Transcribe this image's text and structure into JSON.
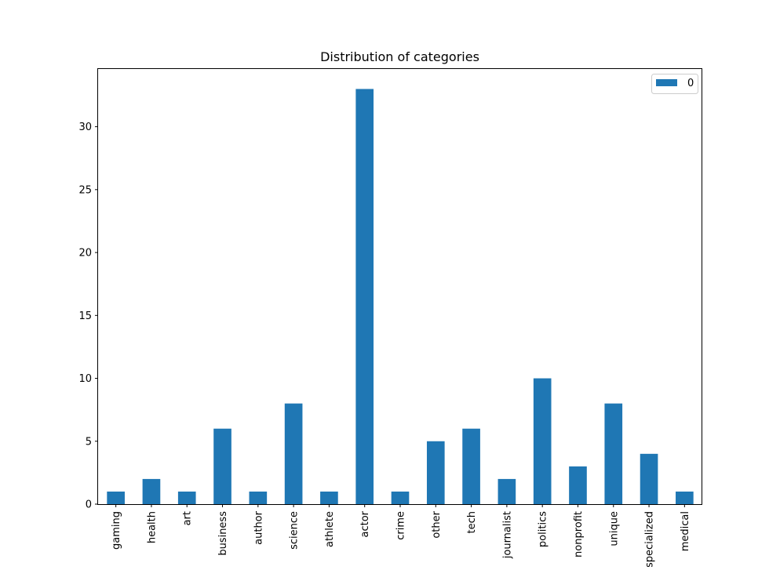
{
  "chart_data": {
    "type": "bar",
    "title": "Distribution of categories",
    "xlabel": "",
    "ylabel": "",
    "categories": [
      "gaming",
      "health",
      "art",
      "business",
      "author",
      "science",
      "athlete",
      "actor",
      "crime",
      "other",
      "tech",
      "journalist",
      "politics",
      "nonprofit",
      "unique",
      "specialized",
      "medical"
    ],
    "series": [
      {
        "name": "0",
        "values": [
          1,
          2,
          1,
          6,
          1,
          8,
          1,
          33,
          1,
          5,
          6,
          2,
          10,
          3,
          8,
          4,
          1
        ]
      }
    ],
    "ylim": [
      0,
      34.65
    ],
    "yticks": [
      0,
      5,
      10,
      15,
      20,
      25,
      30
    ],
    "grid": false,
    "legend_position": "top-right",
    "bar_color": "#1f77b4"
  }
}
